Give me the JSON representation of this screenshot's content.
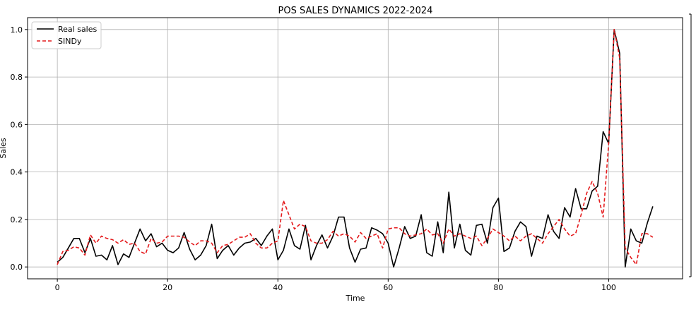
{
  "chart_data": {
    "type": "line",
    "title": "POS SALES DYNAMICS 2022-2024",
    "xlabel": "Time",
    "ylabel": "Sales",
    "xlim": [
      -5.4,
      113.4
    ],
    "ylim": [
      -0.05,
      1.05
    ],
    "xticks": [
      0,
      20,
      40,
      60,
      80,
      100
    ],
    "yticks": [
      0.0,
      0.2,
      0.4,
      0.6,
      0.8,
      1.0
    ],
    "xtick_labels": [
      "0",
      "20",
      "40",
      "60",
      "80",
      "100"
    ],
    "ytick_labels": [
      "0.0",
      "0.2",
      "0.4",
      "0.6",
      "0.8",
      "1.0"
    ],
    "grid": true,
    "legend_position": "top-left",
    "series": [
      {
        "name": "Real sales",
        "color": "#000000",
        "style": "solid",
        "x": [
          0,
          1,
          2,
          3,
          4,
          5,
          6,
          7,
          8,
          9,
          10,
          11,
          12,
          13,
          14,
          15,
          16,
          17,
          18,
          19,
          20,
          21,
          22,
          23,
          24,
          25,
          26,
          27,
          28,
          29,
          30,
          31,
          32,
          33,
          34,
          35,
          36,
          37,
          38,
          39,
          40,
          41,
          42,
          43,
          44,
          45,
          46,
          47,
          48,
          49,
          50,
          51,
          52,
          53,
          54,
          55,
          56,
          57,
          58,
          59,
          60,
          61,
          62,
          63,
          64,
          65,
          66,
          67,
          68,
          69,
          70,
          71,
          72,
          73,
          74,
          75,
          76,
          77,
          78,
          79,
          80,
          81,
          82,
          83,
          84,
          85,
          86,
          87,
          88,
          89,
          90,
          91,
          92,
          93,
          94,
          95,
          96,
          97,
          98,
          99,
          100,
          101,
          102,
          103,
          104,
          105,
          106,
          107,
          108
        ],
        "values": [
          0.02,
          0.04,
          0.08,
          0.12,
          0.12,
          0.06,
          0.12,
          0.045,
          0.05,
          0.03,
          0.09,
          0.01,
          0.055,
          0.04,
          0.1,
          0.16,
          0.11,
          0.14,
          0.085,
          0.1,
          0.07,
          0.06,
          0.08,
          0.145,
          0.075,
          0.03,
          0.05,
          0.09,
          0.18,
          0.035,
          0.07,
          0.09,
          0.05,
          0.08,
          0.1,
          0.105,
          0.12,
          0.09,
          0.13,
          0.16,
          0.03,
          0.07,
          0.16,
          0.09,
          0.075,
          0.175,
          0.03,
          0.09,
          0.135,
          0.08,
          0.13,
          0.21,
          0.21,
          0.08,
          0.02,
          0.075,
          0.08,
          0.165,
          0.155,
          0.14,
          0.1,
          0.0,
          0.08,
          0.17,
          0.12,
          0.13,
          0.22,
          0.06,
          0.045,
          0.19,
          0.06,
          0.315,
          0.08,
          0.18,
          0.07,
          0.05,
          0.175,
          0.18,
          0.1,
          0.25,
          0.29,
          0.065,
          0.08,
          0.15,
          0.19,
          0.17,
          0.045,
          0.13,
          0.12,
          0.22,
          0.15,
          0.12,
          0.25,
          0.21,
          0.33,
          0.245,
          0.245,
          0.32,
          0.34,
          0.57,
          0.52,
          1.0,
          0.9,
          0.0,
          0.16,
          0.11,
          0.1,
          0.185,
          0.255
        ]
      },
      {
        "name": "SINDy",
        "color": "#e41a1c",
        "style": "dashed",
        "x": [
          0,
          1,
          2,
          3,
          4,
          5,
          6,
          7,
          8,
          9,
          10,
          11,
          12,
          13,
          14,
          15,
          16,
          17,
          18,
          19,
          20,
          21,
          22,
          23,
          24,
          25,
          26,
          27,
          28,
          29,
          30,
          31,
          32,
          33,
          34,
          35,
          36,
          37,
          38,
          39,
          40,
          41,
          42,
          43,
          44,
          45,
          46,
          47,
          48,
          49,
          50,
          51,
          52,
          53,
          54,
          55,
          56,
          57,
          58,
          59,
          60,
          61,
          62,
          63,
          64,
          65,
          66,
          67,
          68,
          69,
          70,
          71,
          72,
          73,
          74,
          75,
          76,
          77,
          78,
          79,
          80,
          81,
          82,
          83,
          84,
          85,
          86,
          87,
          88,
          89,
          90,
          91,
          92,
          93,
          94,
          95,
          96,
          97,
          98,
          99,
          100,
          101,
          102,
          103,
          104,
          105,
          106,
          107,
          108
        ],
        "values": [
          0.01,
          0.065,
          0.07,
          0.085,
          0.08,
          0.05,
          0.135,
          0.1,
          0.13,
          0.12,
          0.115,
          0.1,
          0.115,
          0.095,
          0.1,
          0.065,
          0.055,
          0.12,
          0.1,
          0.105,
          0.13,
          0.13,
          0.13,
          0.125,
          0.105,
          0.09,
          0.11,
          0.11,
          0.1,
          0.06,
          0.09,
          0.095,
          0.11,
          0.125,
          0.125,
          0.14,
          0.1,
          0.08,
          0.08,
          0.1,
          0.11,
          0.28,
          0.22,
          0.16,
          0.18,
          0.17,
          0.11,
          0.1,
          0.1,
          0.115,
          0.15,
          0.13,
          0.14,
          0.13,
          0.105,
          0.145,
          0.12,
          0.13,
          0.14,
          0.08,
          0.16,
          0.165,
          0.165,
          0.14,
          0.13,
          0.135,
          0.14,
          0.16,
          0.135,
          0.14,
          0.1,
          0.16,
          0.13,
          0.14,
          0.13,
          0.12,
          0.13,
          0.09,
          0.12,
          0.16,
          0.145,
          0.13,
          0.11,
          0.13,
          0.11,
          0.13,
          0.14,
          0.12,
          0.1,
          0.14,
          0.17,
          0.2,
          0.16,
          0.13,
          0.14,
          0.22,
          0.31,
          0.36,
          0.31,
          0.21,
          0.52,
          1.0,
          0.88,
          0.08,
          0.04,
          0.01,
          0.14,
          0.14,
          0.125
        ]
      }
    ]
  }
}
